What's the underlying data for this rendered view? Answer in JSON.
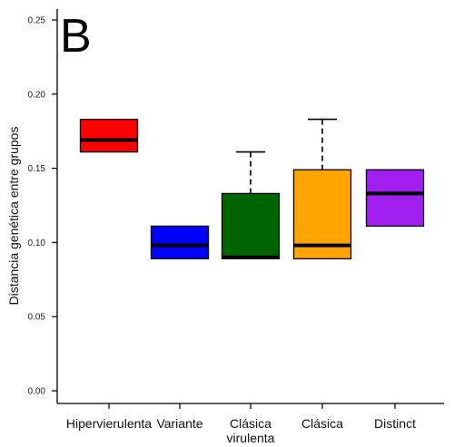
{
  "chart_data": {
    "type": "box",
    "panel_letter": "B",
    "ylabel": "Distancia genética entre grupos",
    "xlabel": "",
    "ylim": [
      0,
      0.25
    ],
    "yticks": [
      "0.00",
      "0.05",
      "0.10",
      "0.15",
      "0.20",
      "0.25"
    ],
    "categories": [
      [
        "Hipervierulenta"
      ],
      [
        "Variante"
      ],
      [
        "Clásica",
        "virulenta"
      ],
      [
        "Clásica"
      ],
      [
        "Distinct"
      ]
    ],
    "boxes": [
      {
        "q1": 0.161,
        "median": 0.169,
        "q3": 0.183,
        "whisker_low": 0.161,
        "whisker_high": 0.183,
        "color": "#ff0000"
      },
      {
        "q1": 0.089,
        "median": 0.098,
        "q3": 0.111,
        "whisker_low": 0.089,
        "whisker_high": 0.111,
        "color": "#0000ff"
      },
      {
        "q1": 0.089,
        "median": 0.09,
        "q3": 0.133,
        "whisker_low": 0.089,
        "whisker_high": 0.161,
        "color": "#006400"
      },
      {
        "q1": 0.089,
        "median": 0.098,
        "q3": 0.149,
        "whisker_low": 0.089,
        "whisker_high": 0.183,
        "color": "#ffa500"
      },
      {
        "q1": 0.111,
        "median": 0.133,
        "q3": 0.149,
        "whisker_low": 0.111,
        "whisker_high": 0.149,
        "color": "#a020f0"
      }
    ],
    "grid": false
  }
}
